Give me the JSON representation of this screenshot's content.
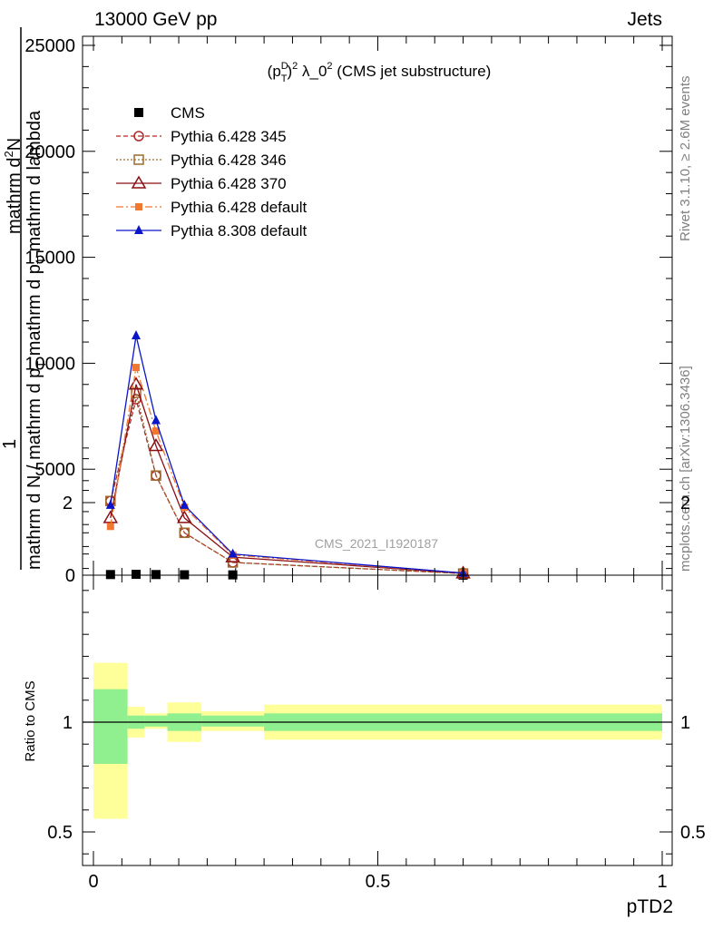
{
  "header": {
    "left": "13000 GeV pp",
    "right": "Jets"
  },
  "side_labels": {
    "rivet": "Rivet 3.1.10, ≥ 2.6M events",
    "mcplots": "mcplots.cern.ch [arXiv:1306.3436]"
  },
  "watermark": "CMS_2021_I1920187",
  "colors": {
    "cms": "#000000",
    "p345": "#b02828",
    "p346": "#9c6a2c",
    "p370": "#8a0f14",
    "p6def": "#f07830",
    "p8def": "#0a14c8",
    "band_inner": "#90f090",
    "band_outer": "#ffff99"
  },
  "chart_data": [
    {
      "type": "line",
      "title_parts": {
        "open": "(p",
        "sup": "D",
        "sub": "T",
        "close": ")",
        "sq": "2",
        "lam": " λ_0",
        "sq2": "2",
        "rest": " (CMS jet substructure)"
      },
      "xlabel": "pTD2",
      "ylabel": {
        "top_line1": "mathrm d",
        "top_sup": "2",
        "top_line2": "N",
        "numer": "1",
        "denom_line1": "mathrm d N / mathrm d p",
        "denom_sub": "T",
        "denom_line2": " mathrm d p",
        "denom_sub2": "T",
        "denom_line3": " mathrm d lambda"
      },
      "xlim": [
        0,
        1
      ],
      "ylim": [
        0,
        25000
      ],
      "yticks": [
        0,
        5000,
        10000,
        15000,
        20000,
        25000
      ],
      "ytick_labels": [
        "0",
        "5000",
        "10000",
        "15000",
        "20000",
        "25000"
      ],
      "legend_position": "top-left",
      "series": [
        {
          "name": "CMS",
          "key": "cms",
          "marker": "square-filled",
          "line": "none",
          "x": [
            0.03,
            0.075,
            0.11,
            0.16,
            0.245,
            0.65
          ],
          "y": [
            30,
            40,
            30,
            20,
            15,
            2
          ]
        },
        {
          "name": "Pythia 6.428 345",
          "key": "p345",
          "marker": "circle-open",
          "line": "dashed",
          "x": [
            0.03,
            0.075,
            0.11,
            0.16,
            0.245,
            0.65
          ],
          "y": [
            3500,
            8300,
            4700,
            2000,
            600,
            80
          ]
        },
        {
          "name": "Pythia 6.428 346",
          "key": "p346",
          "marker": "square-open",
          "line": "dotted",
          "x": [
            0.03,
            0.075,
            0.11,
            0.16,
            0.245,
            0.65
          ],
          "y": [
            3500,
            8600,
            4700,
            2000,
            600,
            80
          ]
        },
        {
          "name": "Pythia 6.428 370",
          "key": "p370",
          "marker": "triangle-open",
          "line": "solid",
          "x": [
            0.03,
            0.075,
            0.11,
            0.16,
            0.245,
            0.65
          ],
          "y": [
            2700,
            9000,
            6100,
            2700,
            850,
            90
          ]
        },
        {
          "name": "Pythia 6.428 default",
          "key": "p6def",
          "marker": "square-small",
          "line": "dashdot",
          "x": [
            0.03,
            0.075,
            0.11,
            0.16,
            0.245,
            0.65
          ],
          "y": [
            2300,
            9800,
            6800,
            3200,
            950,
            100
          ]
        },
        {
          "name": "Pythia 8.308 default",
          "key": "p8def",
          "marker": "triangle-filled",
          "line": "solid",
          "x": [
            0.03,
            0.075,
            0.11,
            0.16,
            0.245,
            0.65
          ],
          "y": [
            3300,
            11300,
            7300,
            3300,
            1000,
            100
          ]
        }
      ]
    },
    {
      "type": "area",
      "ylabel": "Ratio to CMS",
      "xlabel": "pTD2",
      "xlim": [
        0,
        1
      ],
      "ylim": [
        0.35,
        2.25
      ],
      "yticks": [
        0.5,
        1,
        2
      ],
      "ytick_labels": [
        "0.5",
        "1",
        "2"
      ],
      "xticks": [
        0,
        0.5,
        1
      ],
      "xtick_labels": [
        "0",
        "0.5",
        "1"
      ],
      "reference_line": 1,
      "bins": [
        {
          "x0": 0.0,
          "x1": 0.06,
          "inner": [
            0.81,
            1.15
          ],
          "outer": [
            0.56,
            1.27
          ]
        },
        {
          "x0": 0.06,
          "x1": 0.09,
          "inner": [
            0.97,
            1.03
          ],
          "outer": [
            0.93,
            1.07
          ]
        },
        {
          "x0": 0.09,
          "x1": 0.13,
          "inner": [
            0.98,
            1.03
          ],
          "outer": [
            0.97,
            1.04
          ]
        },
        {
          "x0": 0.13,
          "x1": 0.19,
          "inner": [
            0.96,
            1.04
          ],
          "outer": [
            0.91,
            1.09
          ]
        },
        {
          "x0": 0.19,
          "x1": 0.3,
          "inner": [
            0.98,
            1.03
          ],
          "outer": [
            0.96,
            1.05
          ]
        },
        {
          "x0": 0.3,
          "x1": 1.0,
          "inner": [
            0.96,
            1.04
          ],
          "outer": [
            0.92,
            1.08
          ]
        }
      ]
    }
  ]
}
